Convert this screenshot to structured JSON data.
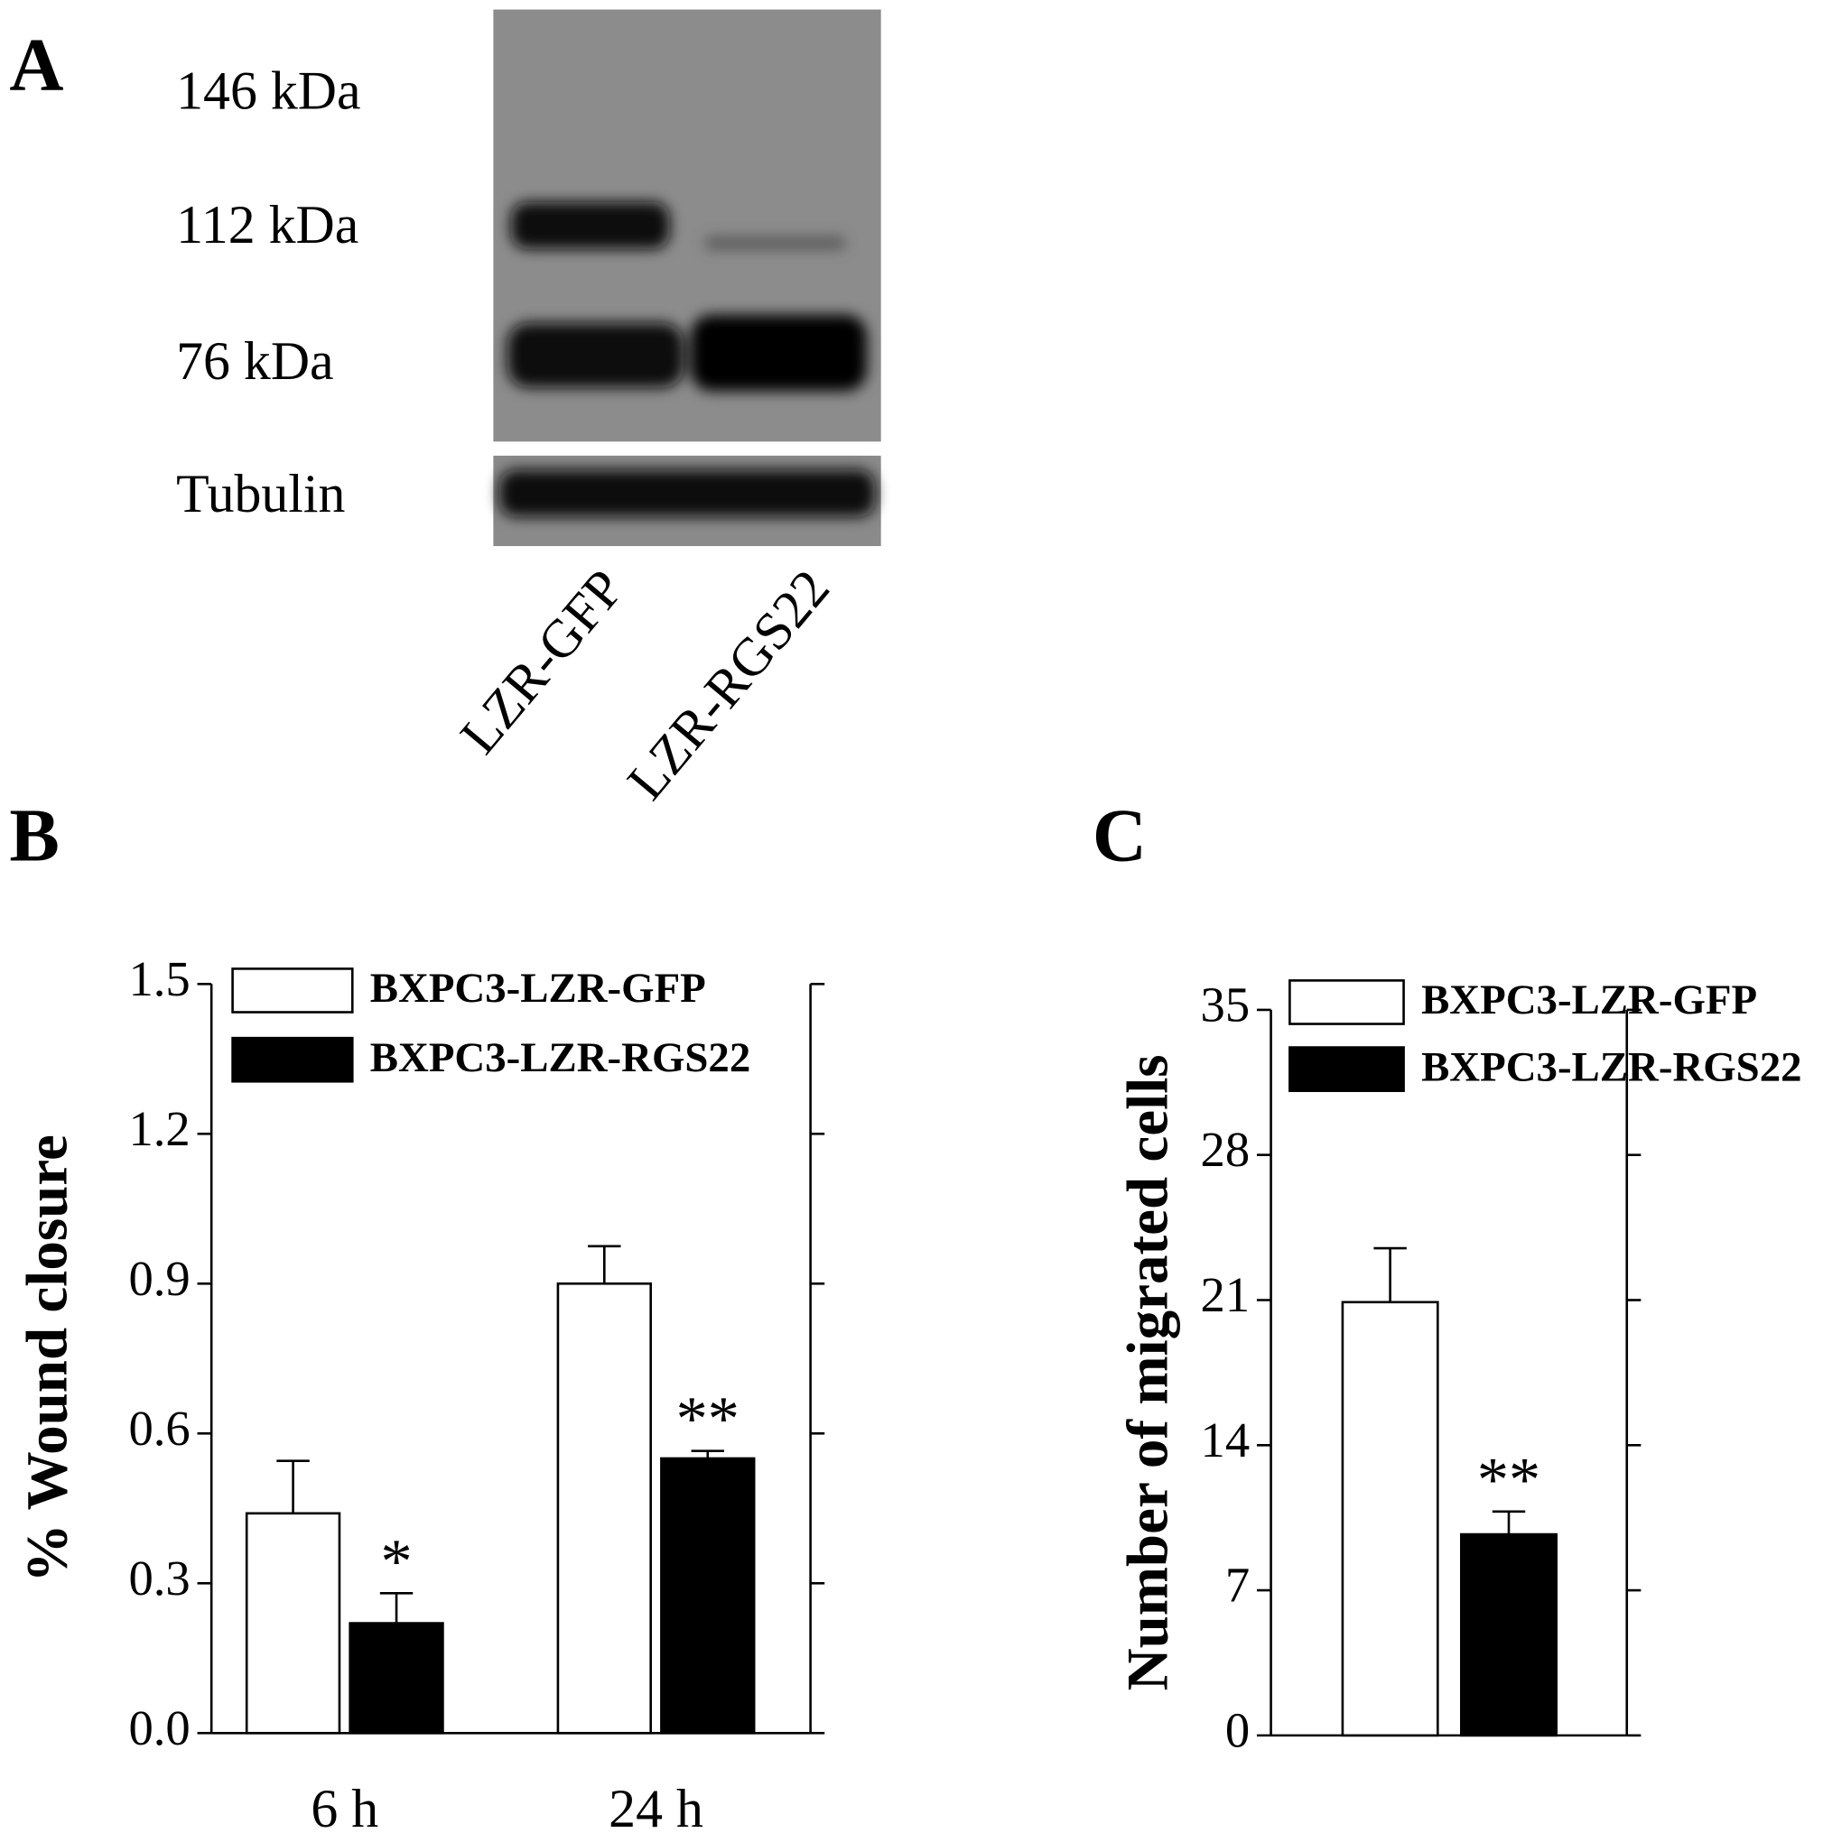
{
  "blot": {
    "panel": "A",
    "markers": [
      "146 kDa",
      "112 kDa",
      "76 kDa"
    ],
    "loading_control": "Tubulin",
    "lanes": [
      "LZR-GFP",
      "LZR-RGS22"
    ]
  },
  "chart_data": [
    {
      "type": "bar",
      "panel": "B",
      "y_label": "% Wound closure",
      "categories": [
        "6 h",
        "24 h"
      ],
      "series": [
        {
          "name": "BXPC3-LZR-GFP",
          "color": "#ffffff",
          "values": [
            0.44,
            0.9
          ],
          "errors": [
            0.105,
            0.075
          ]
        },
        {
          "name": "BXPC3-LZR-RGS22",
          "color": "#000000",
          "values": [
            0.22,
            0.55
          ],
          "errors": [
            0.06,
            0.015
          ],
          "annotations": [
            "*",
            "**"
          ]
        }
      ],
      "ylim": [
        0,
        1.5
      ],
      "yticks": [
        {
          "value": 0,
          "label": "0.0"
        },
        0.3,
        0.6,
        0.9,
        1.2,
        1.5
      ]
    },
    {
      "type": "bar",
      "panel": "C",
      "y_label": "Number of migrated cells",
      "categories": [
        null
      ],
      "series": [
        {
          "name": "BXPC3-LZR-GFP",
          "color": "#ffffff",
          "values": [
            20.9
          ],
          "errors": [
            2.6
          ]
        },
        {
          "name": "BXPC3-LZR-RGS22",
          "color": "#000000",
          "values": [
            9.7
          ],
          "errors": [
            1.1
          ],
          "annotations": [
            "**"
          ]
        }
      ],
      "ylim": [
        0,
        35
      ],
      "yticks": [
        0,
        7,
        14,
        21,
        28,
        35
      ]
    }
  ]
}
